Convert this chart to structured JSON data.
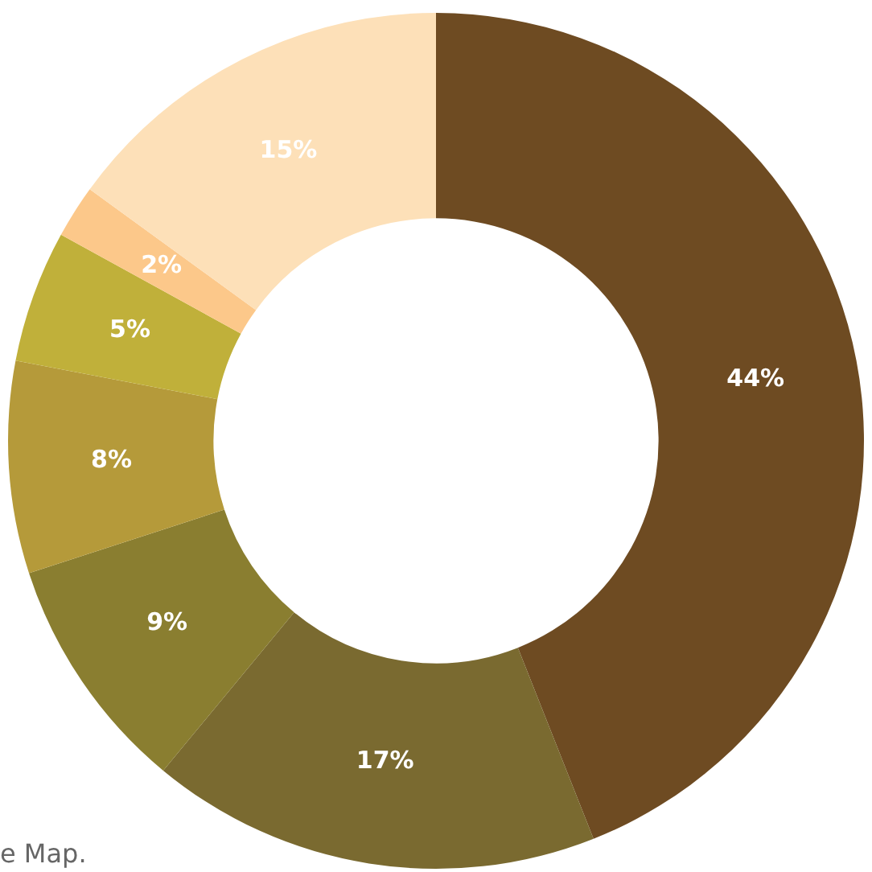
{
  "chart_data": {
    "type": "donut",
    "categories": [
      null,
      null,
      null,
      null,
      null,
      null,
      null
    ],
    "values": [
      44,
      17,
      9,
      8,
      5,
      2,
      15
    ],
    "colors": [
      "#6e4b22",
      "#7a6a30",
      "#8a7e30",
      "#b59a3a",
      "#c0b03a",
      "#fcc88a",
      "#fde0b8"
    ],
    "value_labels": [
      "44%",
      "17%",
      "9%",
      "8%",
      "5%",
      "2%",
      "15%"
    ],
    "annotations": [
      "e Map."
    ],
    "legend": false
  }
}
